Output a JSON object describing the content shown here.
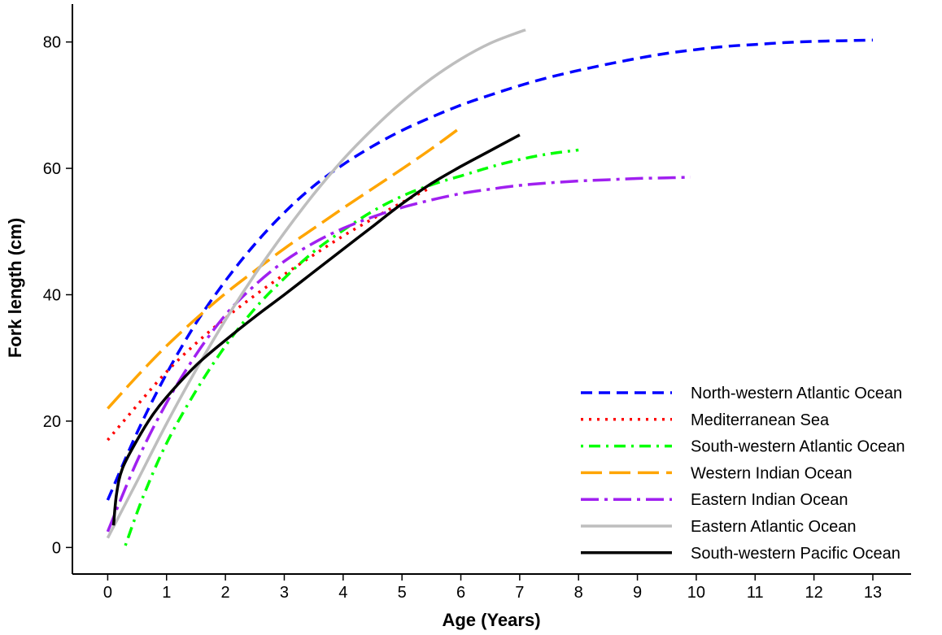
{
  "chart_data": {
    "type": "line",
    "title": "",
    "xlabel": "Age (Years)",
    "ylabel": "Fork length (cm)",
    "xlim": [
      -0.6,
      13.65
    ],
    "ylim": [
      -4.2,
      86
    ],
    "x_ticks": [
      0,
      1,
      2,
      3,
      4,
      5,
      6,
      7,
      8,
      9,
      10,
      11,
      12,
      13
    ],
    "y_ticks": [
      0,
      20,
      40,
      60,
      80
    ],
    "grid": false,
    "legend_position": "bottom-right",
    "series": [
      {
        "name": "North-western Atlantic Ocean",
        "color": "#0000ff",
        "dash": "dashed",
        "x": [
          0,
          0.5,
          1,
          1.5,
          2,
          2.5,
          3,
          3.5,
          4,
          4.5,
          5,
          5.5,
          6,
          6.5,
          7,
          7.5,
          8,
          8.5,
          9,
          9.5,
          10,
          10.5,
          11,
          11.5,
          12,
          12.5,
          13
        ],
        "y": [
          7.5,
          18.2,
          27.5,
          35.5,
          42.2,
          48.0,
          53.0,
          57.2,
          60.6,
          63.5,
          66.0,
          68.1,
          70.0,
          71.6,
          73.1,
          74.4,
          75.5,
          76.5,
          77.4,
          78.2,
          78.8,
          79.3,
          79.6,
          79.9,
          80.1,
          80.2,
          80.3
        ]
      },
      {
        "name": "Mediterranean Sea",
        "color": "#ff0000",
        "dash": "dotted",
        "x": [
          0,
          0.5,
          1,
          1.5,
          2,
          2.5,
          3,
          3.5,
          4,
          4.5,
          5,
          5.5
        ],
        "y": [
          17.0,
          22.5,
          27.8,
          32.3,
          36.3,
          39.9,
          43.2,
          46.3,
          49.3,
          52.0,
          54.6,
          57.0
        ]
      },
      {
        "name": "South-western Atlantic Ocean",
        "color": "#00ff00",
        "dash": "dotdash",
        "x": [
          0.3,
          0.6,
          1,
          1.5,
          2,
          2.5,
          3,
          3.5,
          4,
          4.5,
          5,
          5.5,
          6,
          6.5,
          7,
          7.5,
          8
        ],
        "y": [
          0.3,
          8.0,
          16.5,
          24.8,
          31.9,
          37.8,
          42.6,
          46.8,
          50.2,
          53.2,
          55.6,
          57.4,
          58.8,
          60.2,
          61.4,
          62.3,
          62.9
        ]
      },
      {
        "name": "Western Indian Ocean",
        "color": "#ffa500",
        "dash": "longdash",
        "x": [
          0,
          0.5,
          1,
          1.5,
          2,
          2.5,
          3,
          3.5,
          4,
          4.5,
          5,
          5.5,
          6
        ],
        "y": [
          22.0,
          27.1,
          31.9,
          36.2,
          40.2,
          43.8,
          47.3,
          50.5,
          53.7,
          56.8,
          59.9,
          63.1,
          66.5
        ]
      },
      {
        "name": "Eastern Indian Ocean",
        "color": "#a020f0",
        "dash": "dashdot",
        "x": [
          0,
          0.5,
          1,
          1.5,
          2,
          2.5,
          3,
          3.5,
          4,
          4.5,
          5,
          5.5,
          6,
          6.5,
          7,
          7.5,
          8,
          8.5,
          9,
          9.5,
          9.9
        ],
        "y": [
          2.5,
          13.7,
          22.9,
          30.5,
          36.8,
          41.5,
          45.3,
          48.2,
          50.5,
          52.3,
          53.8,
          55.0,
          56.0,
          56.7,
          57.3,
          57.7,
          58.0,
          58.2,
          58.4,
          58.5,
          58.6
        ]
      },
      {
        "name": "Eastern Atlantic Ocean",
        "color": "#bebebe",
        "dash": "solid",
        "x": [
          0,
          0.5,
          1,
          1.5,
          2,
          2.5,
          3,
          3.5,
          4,
          4.5,
          5,
          5.5,
          6,
          6.5,
          7,
          7.1
        ],
        "y": [
          1.5,
          10.5,
          19.6,
          28.1,
          36.0,
          43.2,
          49.8,
          55.9,
          61.4,
          66.2,
          70.5,
          74.2,
          77.3,
          79.8,
          81.6,
          81.9
        ]
      },
      {
        "name": "South-western Pacific Ocean",
        "color": "#000000",
        "dash": "solid",
        "x": [
          0.1,
          0.15,
          0.25,
          0.5,
          0.75,
          1,
          1.5,
          2,
          2.5,
          3,
          3.5,
          4,
          4.5,
          5,
          5.5,
          6,
          6.5,
          7
        ],
        "y": [
          3.5,
          8.5,
          12.5,
          17.0,
          20.8,
          23.8,
          28.8,
          32.8,
          36.5,
          40.0,
          43.6,
          47.2,
          50.8,
          54.4,
          57.6,
          60.3,
          62.8,
          65.3
        ]
      }
    ]
  }
}
